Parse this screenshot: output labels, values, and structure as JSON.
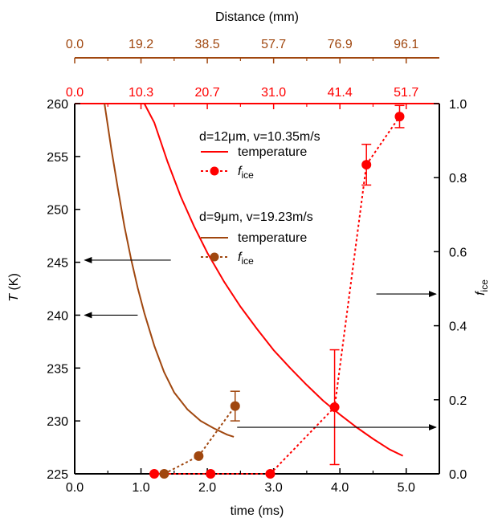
{
  "chart_data": {
    "type": "line",
    "xlabel": "time (ms)",
    "ylabel_left_italic": "T",
    "ylabel_left_unit": " (K)",
    "ylabel_right_base": "f",
    "ylabel_right_sub": "ice",
    "top_axis_label": "Distance (mm)",
    "xlim": [
      0,
      5.5
    ],
    "ylim_left": [
      225,
      260
    ],
    "ylim_right": [
      0,
      1.0
    ],
    "x_ticks": [
      0.0,
      1.0,
      2.0,
      3.0,
      4.0,
      5.0
    ],
    "x_tick_labels": [
      "0.0",
      "1.0",
      "2.0",
      "3.0",
      "4.0",
      "5.0"
    ],
    "y_left_ticks": [
      225,
      230,
      235,
      240,
      245,
      250,
      255,
      260
    ],
    "y_left_tick_labels": [
      "225",
      "230",
      "235",
      "240",
      "245",
      "250",
      "255",
      "260"
    ],
    "y_right_ticks": [
      0.0,
      0.2,
      0.4,
      0.6,
      0.8,
      1.0
    ],
    "y_right_tick_labels": [
      "0.0",
      "0.2",
      "0.4",
      "0.6",
      "0.8",
      "1.0"
    ],
    "top_axes": [
      {
        "color": "#a0470f",
        "ticks": [
          0,
          1,
          2,
          3,
          4,
          5
        ],
        "tick_labels": [
          "0.0",
          "19.2",
          "38.5",
          "57.7",
          "76.9",
          "96.1"
        ]
      },
      {
        "color": "#ff0000",
        "ticks": [
          0,
          1,
          2,
          3,
          4,
          5
        ],
        "tick_labels": [
          "0.0",
          "10.3",
          "20.7",
          "31.0",
          "41.4",
          "51.7"
        ]
      }
    ],
    "legend": {
      "group1_title": "d=12μm, v=10.35m/s",
      "group2_title": "d=9μm, v=19.23m/s",
      "temperature_label": "temperature",
      "fice_base": "f",
      "fice_sub": "ice"
    },
    "series": [
      {
        "name": "temperature",
        "group": "d=12μm, v=10.35m/s",
        "axis": "left",
        "color": "#ff0000",
        "style": "solid",
        "x": [
          1.05,
          1.2,
          1.4,
          1.6,
          1.8,
          2.0,
          2.25,
          2.5,
          2.75,
          3.0,
          3.25,
          3.5,
          3.75,
          4.0,
          4.25,
          4.5,
          4.75,
          4.95
        ],
        "y": [
          260,
          258.2,
          254.5,
          251.2,
          248.4,
          245.9,
          243.2,
          240.8,
          238.7,
          236.7,
          235.0,
          233.4,
          231.9,
          230.6,
          229.4,
          228.3,
          227.3,
          226.7
        ]
      },
      {
        "name": "fice",
        "group": "d=12μm, v=10.35m/s",
        "axis": "right",
        "color": "#ff0000",
        "style": "dotted",
        "x": [
          1.2,
          2.05,
          2.95,
          3.92,
          4.4,
          4.9
        ],
        "y": [
          0.0,
          0.0,
          0.0,
          0.18,
          0.835,
          0.965
        ],
        "err": [
          0,
          0,
          0,
          0.155,
          0.055,
          0.03
        ]
      },
      {
        "name": "temperature",
        "group": "d=9μm, v=19.23m/s",
        "axis": "left",
        "color": "#a0470f",
        "style": "solid",
        "x": [
          0.45,
          0.55,
          0.65,
          0.75,
          0.85,
          0.95,
          1.05,
          1.2,
          1.35,
          1.5,
          1.7,
          1.9,
          2.1,
          2.3,
          2.4
        ],
        "y": [
          260,
          255.8,
          252.0,
          248.4,
          245.3,
          242.6,
          240.2,
          237.1,
          234.6,
          232.7,
          231.1,
          230.0,
          229.3,
          228.7,
          228.5
        ],
        "right_end_x": 2.45
      },
      {
        "name": "fice",
        "group": "d=9μm, v=19.23m/s",
        "axis": "right",
        "color": "#a0470f",
        "style": "dotted",
        "x": [
          1.35,
          1.87,
          2.42
        ],
        "y": [
          0.0,
          0.048,
          0.183
        ],
        "err": [
          0,
          0,
          0.04
        ]
      }
    ],
    "arrows": [
      {
        "from_x": 1.45,
        "to_x": 0.15,
        "y_left": 245.2
      },
      {
        "from_x": 0.95,
        "to_x": 0.15,
        "y_left": 240.0
      },
      {
        "from_x": 4.55,
        "to_x": 5.45,
        "y_left": 242.0
      },
      {
        "from_x": 2.45,
        "to_x": 5.45,
        "y_left": 229.4
      }
    ]
  }
}
